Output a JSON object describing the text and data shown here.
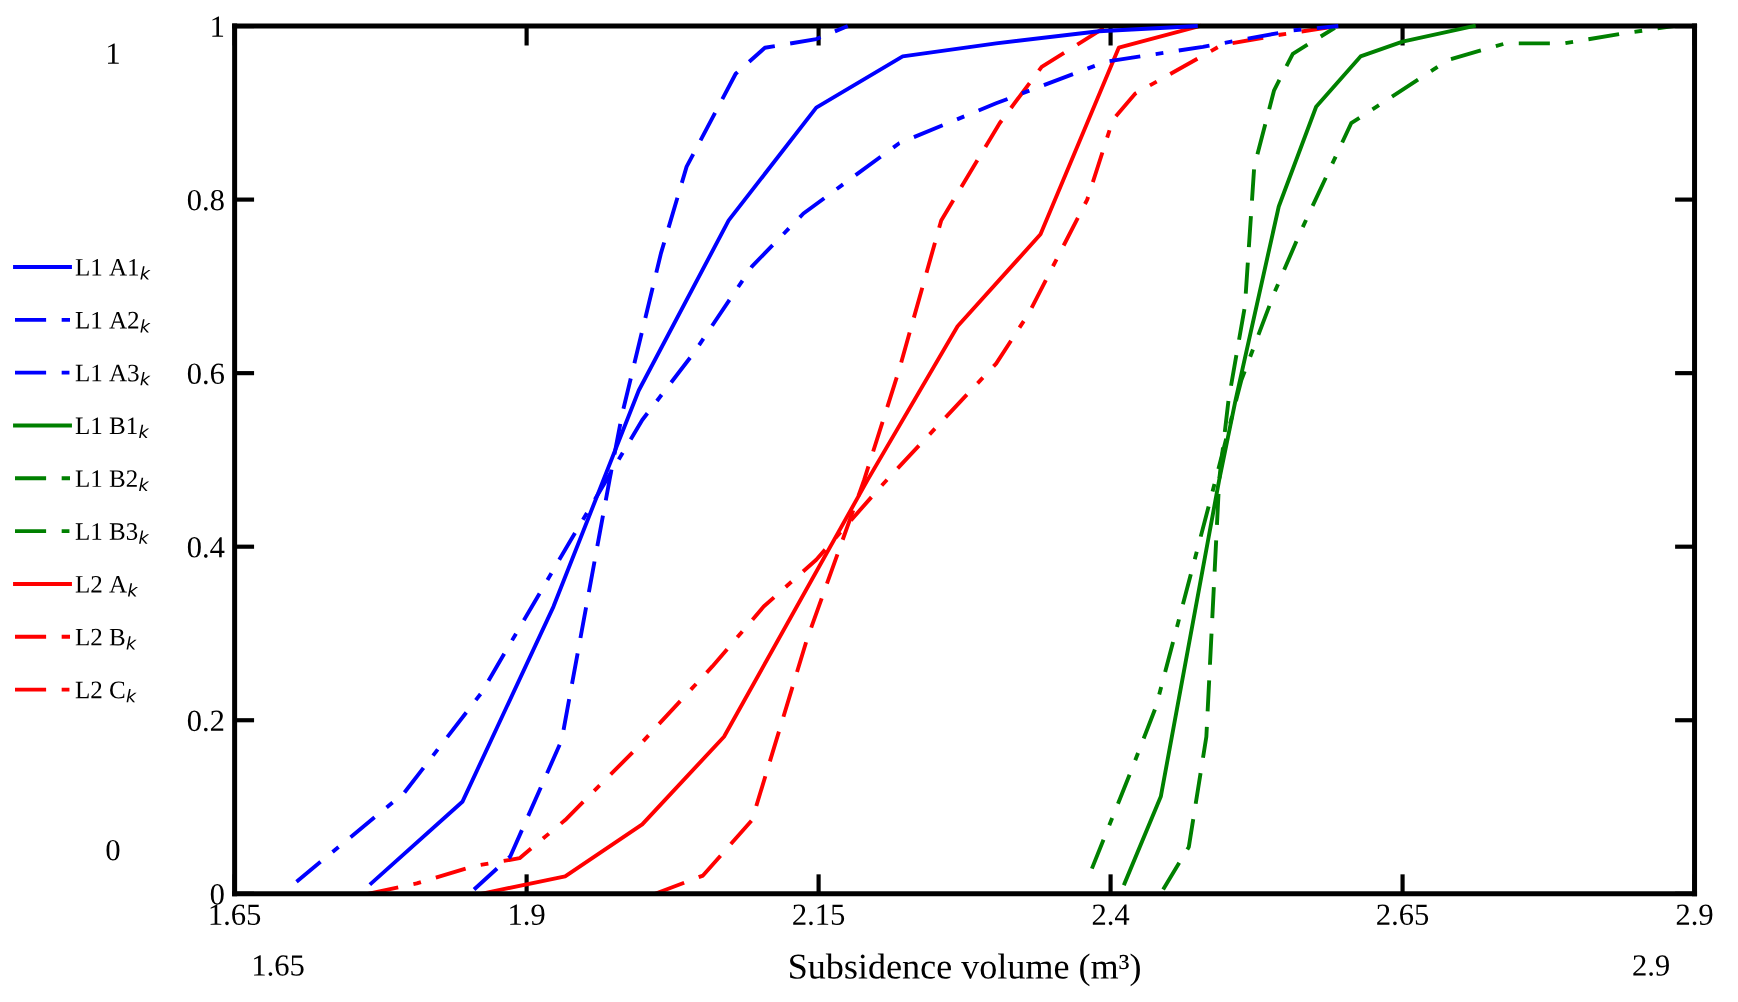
{
  "chart_data": {
    "type": "line",
    "xlabel": "Subsidence volume (m³)",
    "xlim": [
      1.65,
      2.9
    ],
    "xticks": [
      1.65,
      1.9,
      2.15,
      2.4,
      2.65,
      2.9
    ],
    "ylim": [
      0,
      1
    ],
    "yticks": [
      0,
      0.2,
      0.4,
      0.6,
      0.8,
      1
    ],
    "grid": false,
    "legend": "left",
    "marker": "none",
    "annotations": [
      "1",
      "0",
      "1.65",
      "2.9"
    ],
    "series": [
      {
        "name": "L1 A1$_{k}$",
        "color": "#0000ff",
        "line_style": "solid",
        "x": [
          1.767,
          1.845,
          1.923,
          1.996,
          2.073,
          2.148,
          2.222,
          2.302,
          2.39,
          2.473
        ],
        "values": [
          0.012,
          0.106,
          0.331,
          0.58,
          0.776,
          0.906,
          0.965,
          0.98,
          0.994,
          1.0
        ]
      },
      {
        "name": "L1 A2$_{k}$",
        "color": "#0000ff",
        "line_style": "dashed",
        "x": [
          1.855,
          1.886,
          1.93,
          1.971,
          1.982,
          2.015,
          2.037,
          2.079,
          2.104,
          2.148,
          2.175
        ],
        "values": [
          0.005,
          0.043,
          0.177,
          0.477,
          0.554,
          0.738,
          0.838,
          0.945,
          0.975,
          0.985,
          1.0
        ]
      },
      {
        "name": "L1 A3$_{k}$",
        "color": "#0000ff",
        "line_style": "dashdot",
        "x": [
          1.703,
          1.795,
          1.861,
          1.938,
          1.999,
          2.043,
          2.093,
          2.137,
          2.219,
          2.302,
          2.396,
          2.479,
          2.556,
          2.595
        ],
        "values": [
          0.014,
          0.116,
          0.231,
          0.408,
          0.546,
          0.623,
          0.723,
          0.784,
          0.865,
          0.911,
          0.959,
          0.976,
          0.995,
          1.0
        ]
      },
      {
        "name": "L1 B1$_{k}$",
        "color": "#008000",
        "line_style": "solid",
        "x": [
          2.412,
          2.443,
          2.493,
          2.507,
          2.544,
          2.576,
          2.614,
          2.65,
          2.711
        ],
        "values": [
          0.012,
          0.112,
          0.477,
          0.569,
          0.792,
          0.907,
          0.965,
          0.982,
          1.0
        ]
      },
      {
        "name": "L1 B2$_{k}$",
        "color": "#008000",
        "line_style": "dashed",
        "x": [
          2.445,
          2.467,
          2.482,
          2.493,
          2.501,
          2.515,
          2.523,
          2.54,
          2.556,
          2.592
        ],
        "values": [
          0.005,
          0.054,
          0.181,
          0.477,
          0.569,
          0.677,
          0.838,
          0.926,
          0.968,
          0.998
        ]
      },
      {
        "name": "L1 B3$_{k}$",
        "color": "#008000",
        "line_style": "dashdot",
        "x": [
          2.384,
          2.418,
          2.439,
          2.487,
          2.512,
          2.54,
          2.562,
          2.606,
          2.689,
          2.738,
          2.788,
          2.837,
          2.882
        ],
        "values": [
          0.029,
          0.143,
          0.216,
          0.462,
          0.592,
          0.692,
          0.761,
          0.888,
          0.961,
          0.98,
          0.98,
          0.991,
          1.0
        ]
      },
      {
        "name": "L2 A$_{k}$",
        "color": "#ff0000",
        "line_style": "solid",
        "x": [
          1.861,
          1.933,
          1.999,
          2.069,
          2.192,
          2.269,
          2.34,
          2.407,
          2.476
        ],
        "values": [
          0.0,
          0.02,
          0.08,
          0.181,
          0.477,
          0.654,
          0.76,
          0.975,
          1.0
        ]
      },
      {
        "name": "L2 B$_{k}$",
        "color": "#ff0000",
        "line_style": "dashed",
        "x": [
          2.01,
          2.051,
          2.093,
          2.14,
          2.189,
          2.219,
          2.255,
          2.305,
          2.341,
          2.391,
          2.4
        ],
        "values": [
          0.0,
          0.021,
          0.085,
          0.293,
          0.477,
          0.604,
          0.776,
          0.888,
          0.953,
          0.995,
          1.0
        ]
      },
      {
        "name": "L2 C$_{k}$",
        "color": "#ff0000",
        "line_style": "dashdot",
        "x": [
          1.764,
          1.806,
          1.855,
          1.894,
          1.933,
          1.993,
          2.059,
          2.103,
          2.148,
          2.203,
          2.214,
          2.302,
          2.33,
          2.38,
          2.402,
          2.421,
          2.495,
          2.545,
          2.595
        ],
        "values": [
          0.0,
          0.012,
          0.032,
          0.041,
          0.085,
          0.166,
          0.262,
          0.331,
          0.385,
          0.469,
          0.485,
          0.611,
          0.669,
          0.8,
          0.892,
          0.922,
          0.978,
          0.99,
          1.0
        ]
      }
    ]
  }
}
